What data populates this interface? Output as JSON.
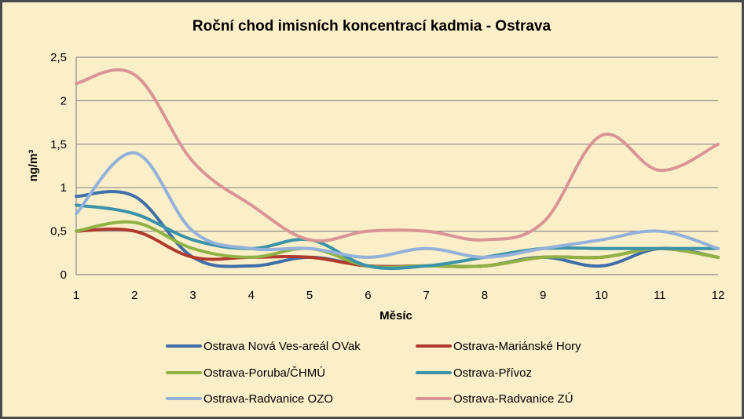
{
  "chart_data": {
    "type": "line",
    "title": "Roční chod imisních koncentrací kadmia - Ostrava",
    "xlabel": "Měsíc",
    "ylabel": "ng/m³",
    "x": [
      "1",
      "2",
      "3",
      "4",
      "5",
      "6",
      "7",
      "8",
      "9",
      "10",
      "11",
      "12"
    ],
    "ylim": [
      0,
      2.5
    ],
    "yticks": [
      "0",
      "0,5",
      "1",
      "1,5",
      "2",
      "2,5"
    ],
    "grid": true,
    "legend_position": "bottom",
    "series": [
      {
        "name": "Ostrava Nová Ves-areál OVak",
        "color": "#3f6ea8",
        "values": [
          0.9,
          0.9,
          0.2,
          0.1,
          0.2,
          0.1,
          0.1,
          0.1,
          0.2,
          0.1,
          0.3,
          0.2
        ]
      },
      {
        "name": "Ostrava-Mariánské Hory",
        "color": "#b03a2e",
        "values": [
          0.5,
          0.5,
          0.2,
          0.2,
          0.2,
          0.1,
          0.1,
          0.1,
          0.2,
          0.2,
          0.3,
          0.2
        ]
      },
      {
        "name": "Ostrava-Poruba/ČHMÚ",
        "color": "#8fb245",
        "values": [
          0.5,
          0.6,
          0.3,
          0.2,
          0.3,
          0.1,
          0.1,
          0.1,
          0.2,
          0.2,
          0.3,
          0.2
        ]
      },
      {
        "name": "Ostrava-Přívoz",
        "color": "#3a93a8",
        "values": [
          0.8,
          0.7,
          0.4,
          0.3,
          0.4,
          0.1,
          0.1,
          0.2,
          0.3,
          0.3,
          0.3,
          0.3
        ]
      },
      {
        "name": "Ostrava-Radvanice OZO",
        "color": "#93b1db",
        "values": [
          0.7,
          1.4,
          0.5,
          0.3,
          0.3,
          0.2,
          0.3,
          0.2,
          0.3,
          0.4,
          0.5,
          0.3
        ]
      },
      {
        "name": "Ostrava-Radvanice ZÚ",
        "color": "#d99594",
        "values": [
          2.2,
          2.3,
          1.3,
          0.8,
          0.4,
          0.5,
          0.5,
          0.4,
          0.6,
          1.6,
          1.2,
          1.5
        ]
      }
    ]
  }
}
